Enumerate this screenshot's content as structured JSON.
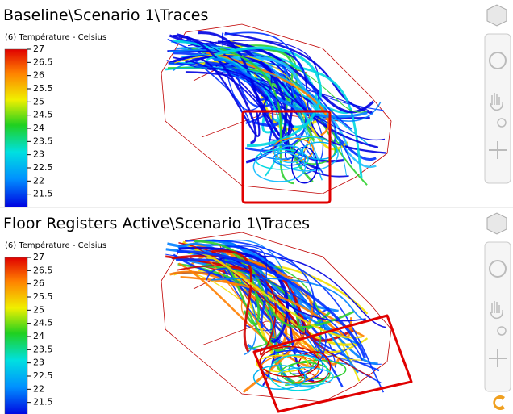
{
  "panels": [
    {
      "title": "Baseline\\Scenario 1\\Traces",
      "legend_title": "(6) Température - Celsius",
      "scale_lim": [
        21,
        27
      ],
      "scale_ticks": [
        27,
        26.5,
        26,
        25.5,
        25,
        24.5,
        24,
        23.5,
        23,
        22.5,
        22,
        21.5
      ]
    },
    {
      "title": "Floor Registers Active\\Scenario 1\\Traces",
      "legend_title": "(6) Température - Celsius",
      "scale_lim": [
        21,
        27
      ],
      "scale_ticks": [
        27,
        26.5,
        26,
        25.5,
        25,
        24.5,
        24,
        23.5,
        23,
        22.5,
        22,
        21.5
      ]
    }
  ]
}
